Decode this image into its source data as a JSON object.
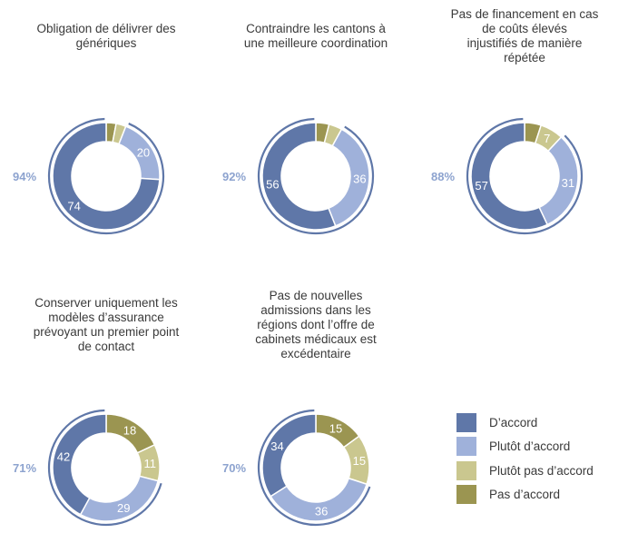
{
  "colors": {
    "accord": "#5f77a8",
    "plutot_accord": "#9fb1da",
    "plutot_pas": "#cac78f",
    "pas": "#9b9551",
    "pct_text": "#8da3cf"
  },
  "legend": [
    {
      "label": "D’accord",
      "color": "#5f77a8"
    },
    {
      "label": "Plutôt d’accord",
      "color": "#9fb1da"
    },
    {
      "label": "Plutôt pas d’accord",
      "color": "#cac78f"
    },
    {
      "label": "Pas d’accord",
      "color": "#9b9551"
    }
  ],
  "chart_data": [
    {
      "type": "pie",
      "title": [
        "Obligation de délivrer des",
        "génériques"
      ],
      "agree_total": "94%",
      "categories": [
        "D’accord",
        "Plutôt d’accord",
        "Plutôt pas d’accord",
        "Pas d’accord"
      ],
      "values": [
        74,
        20,
        3,
        3
      ],
      "labels": [
        "74",
        "20",
        "",
        ""
      ]
    },
    {
      "type": "pie",
      "title": [
        "Contraindre les cantons à",
        "une meilleure coordination"
      ],
      "agree_total": "92%",
      "categories": [
        "D’accord",
        "Plutôt d’accord",
        "Plutôt pas d’accord",
        "Pas d’accord"
      ],
      "values": [
        56,
        36,
        4,
        4
      ],
      "labels": [
        "56",
        "36",
        "",
        ""
      ]
    },
    {
      "type": "pie",
      "title": [
        "Pas de financement en cas",
        "de coûts élevés",
        "injustifiés de manière",
        "répétée"
      ],
      "agree_total": "88%",
      "categories": [
        "D’accord",
        "Plutôt d’accord",
        "Plutôt pas d’accord",
        "Pas d’accord"
      ],
      "values": [
        57,
        31,
        7,
        5
      ],
      "labels": [
        "57",
        "31",
        "7",
        ""
      ]
    },
    {
      "type": "pie",
      "title": [
        "Conserver uniquement les",
        "modèles d’assurance",
        "prévoyant un premier point",
        "de contact"
      ],
      "agree_total": "71%",
      "categories": [
        "D’accord",
        "Plutôt d’accord",
        "Plutôt pas d’accord",
        "Pas d’accord"
      ],
      "values": [
        42,
        29,
        11,
        18
      ],
      "labels": [
        "42",
        "29",
        "11",
        "18"
      ]
    },
    {
      "type": "pie",
      "title": [
        "Pas de nouvelles",
        "admissions dans les",
        "régions dont l’offre de",
        "cabinets médicaux est",
        "excédentaire"
      ],
      "agree_total": "70%",
      "categories": [
        "D’accord",
        "Plutôt d’accord",
        "Plutôt pas d’accord",
        "Pas d’accord"
      ],
      "values": [
        34,
        36,
        15,
        15
      ],
      "labels": [
        "34",
        "36",
        "15",
        "15"
      ]
    }
  ]
}
